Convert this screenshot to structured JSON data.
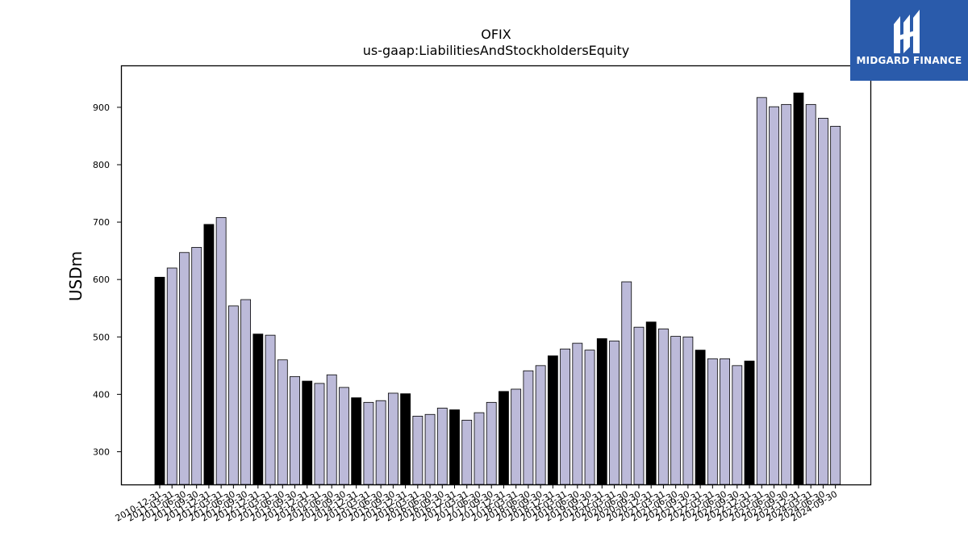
{
  "brand": {
    "name": "MIDGARD FINANCE",
    "background_color": "#2a5bab",
    "icon": "midgard-logo-mark-icon"
  },
  "chart_data": {
    "type": "bar",
    "title": "OFIX",
    "subtitle": "us-gaap:LiabilitiesAndStockholdersEquity",
    "xlabel": "",
    "ylabel": "USDm",
    "ylim": [
      243,
      973
    ],
    "yticks": [
      300,
      400,
      500,
      600,
      700,
      800,
      900
    ],
    "grid": false,
    "colors": {
      "regular": "#bcbad9",
      "year_end": "#000000",
      "edge": "#000000"
    },
    "categories": [
      "2010-12-31",
      "2011-03-31",
      "2011-06-30",
      "2011-09-30",
      "2011-12-31",
      "2012-03-31",
      "2012-06-30",
      "2012-09-30",
      "2012-12-31",
      "2013-03-31",
      "2013-06-30",
      "2013-09-30",
      "2013-12-31",
      "2014-03-31",
      "2014-06-30",
      "2014-09-30",
      "2014-12-31",
      "2015-03-31",
      "2015-06-30",
      "2015-09-30",
      "2015-12-31",
      "2016-03-31",
      "2016-06-30",
      "2016-09-30",
      "2016-12-31",
      "2017-03-31",
      "2017-06-30",
      "2017-09-30",
      "2017-12-31",
      "2018-03-31",
      "2018-06-30",
      "2018-09-30",
      "2018-12-31",
      "2019-03-31",
      "2019-06-30",
      "2019-09-30",
      "2019-12-31",
      "2020-03-31",
      "2020-06-30",
      "2020-09-30",
      "2020-12-31",
      "2021-03-31",
      "2021-06-30",
      "2021-09-30",
      "2021-12-31",
      "2022-03-31",
      "2022-06-30",
      "2022-09-30",
      "2022-12-31",
      "2023-03-31",
      "2023-06-30",
      "2023-09-30",
      "2023-12-31",
      "2024-03-31",
      "2024-06-30",
      "2024-09-30"
    ],
    "values": [
      604,
      620,
      647,
      656,
      696,
      708,
      554,
      565,
      505,
      503,
      460,
      431,
      423,
      419,
      434,
      412,
      394,
      386,
      389,
      402,
      401,
      362,
      365,
      376,
      373,
      355,
      368,
      386,
      405,
      409,
      441,
      450,
      467,
      479,
      489,
      477,
      497,
      493,
      596,
      517,
      526,
      514,
      501,
      500,
      477,
      462,
      462,
      450,
      458,
      917,
      901,
      905,
      925,
      905,
      881,
      867
    ],
    "year_end": [
      true,
      false,
      false,
      false,
      true,
      false,
      false,
      false,
      true,
      false,
      false,
      false,
      true,
      false,
      false,
      false,
      true,
      false,
      false,
      false,
      true,
      false,
      false,
      false,
      true,
      false,
      false,
      false,
      true,
      false,
      false,
      false,
      true,
      false,
      false,
      false,
      true,
      false,
      false,
      false,
      true,
      false,
      false,
      false,
      true,
      false,
      false,
      false,
      true,
      false,
      false,
      false,
      true,
      false,
      false,
      false
    ]
  }
}
